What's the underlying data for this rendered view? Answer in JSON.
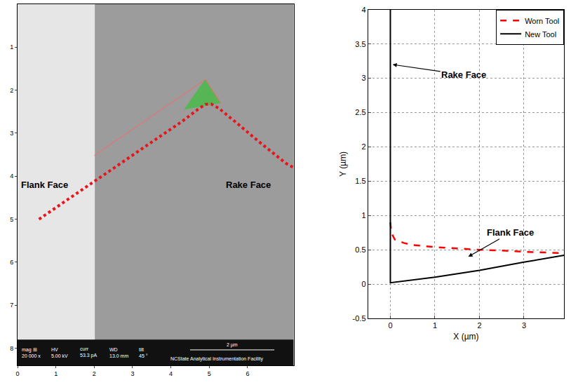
{
  "chart_data": [
    {
      "type": "line",
      "xlim": [
        0,
        7.2
      ],
      "xticks": [
        0,
        1,
        2,
        3,
        4,
        5,
        6
      ],
      "ylim": [
        8.4,
        0
      ],
      "yticks": [
        1,
        2,
        3,
        4,
        5,
        6,
        7,
        8
      ],
      "grid": false,
      "annotations": [
        "Flank Face",
        "Rake Face"
      ],
      "info_bar": {
        "fields": [
          {
            "label": "mag ⊞",
            "value": "20 000 x"
          },
          {
            "label": "HV",
            "value": "5.00 kV"
          },
          {
            "label": "curr",
            "value": "53.3 pA"
          },
          {
            "label": "WD",
            "value": "13.0 mm"
          },
          {
            "label": "tilt",
            "value": "45 °"
          }
        ],
        "scale_bar": "2 µm",
        "facility": "NCState Analytical Instrumentation Facility"
      },
      "series": [
        {
          "type": "area",
          "color": "#3fbf3f",
          "x": [
            4.35,
            4.9,
            5.3
          ],
          "values": [
            2.45,
            1.75,
            2.3
          ]
        },
        {
          "type": "line",
          "color": "#ff6666",
          "line_style": "solid",
          "x": [
            2.0,
            4.9,
            5.3
          ],
          "values": [
            3.52,
            1.75,
            2.3
          ]
        },
        {
          "type": "line",
          "color": "#e8141c",
          "line_style": "dotted",
          "x": [
            0.56,
            1.5,
            2.5,
            3.5,
            4.3,
            4.7,
            4.9,
            5.05,
            5.25,
            5.7,
            6.3,
            7.0,
            7.2
          ],
          "values": [
            5.0,
            4.43,
            3.82,
            3.2,
            2.72,
            2.45,
            2.33,
            2.32,
            2.42,
            2.75,
            3.2,
            3.7,
            3.8
          ]
        }
      ]
    },
    {
      "type": "line",
      "x_label": "X (µm)",
      "y_label": "Y (µm)",
      "xlim": [
        -0.5,
        3.9
      ],
      "xticks": [
        0,
        1,
        2,
        3
      ],
      "ylim": [
        -0.5,
        4
      ],
      "yticks": [
        -0.5,
        0,
        0.5,
        1,
        1.5,
        2,
        2.5,
        3,
        3.5,
        4
      ],
      "grid": true,
      "legend": "upper right",
      "annotations": [
        "Rake Face",
        "Flank Face"
      ],
      "series": [
        {
          "name": "Worn Tool",
          "color": "#ff0000",
          "line_style": "dashed",
          "x": [
            0,
            0.02,
            0.1,
            0.3,
            0.5,
            1,
            1.5,
            2,
            2.5,
            3,
            3.5,
            3.9
          ],
          "values": [
            0.9,
            0.75,
            0.65,
            0.6,
            0.57,
            0.54,
            0.52,
            0.5,
            0.49,
            0.47,
            0.46,
            0.45
          ]
        },
        {
          "name": "New Tool",
          "color": "#000000",
          "line_style": "solid",
          "x": [
            0,
            0,
            1,
            2,
            3,
            3.9
          ],
          "values": [
            4,
            0.02,
            0.1,
            0.2,
            0.32,
            0.42
          ]
        }
      ]
    }
  ]
}
